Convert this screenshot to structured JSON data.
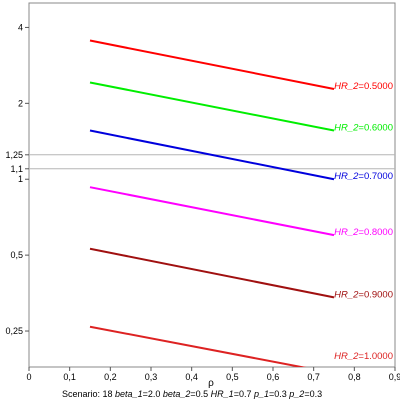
{
  "chart_data": {
    "type": "line",
    "xlabel": "ρ",
    "xlim": [
      0,
      0.9
    ],
    "ylim": [
      0.18,
      5.0
    ],
    "yscale": "log",
    "x_ticks": [
      {
        "v": 0,
        "label": "0"
      },
      {
        "v": 0.1,
        "label": "0,1"
      },
      {
        "v": 0.2,
        "label": "0,2"
      },
      {
        "v": 0.3,
        "label": "0,3"
      },
      {
        "v": 0.4,
        "label": "0,4"
      },
      {
        "v": 0.5,
        "label": "0,5"
      },
      {
        "v": 0.6,
        "label": "0,6"
      },
      {
        "v": 0.7,
        "label": "0,7"
      },
      {
        "v": 0.8,
        "label": "0,8"
      },
      {
        "v": 0.9,
        "label": "0,9"
      }
    ],
    "y_ticks": [
      {
        "v": 4,
        "label": "4"
      },
      {
        "v": 2,
        "label": "2"
      },
      {
        "v": 1.25,
        "label": "1,25"
      },
      {
        "v": 1.1,
        "label": "1,1"
      },
      {
        "v": 1,
        "label": "1"
      },
      {
        "v": 0.5,
        "label": "0,5"
      },
      {
        "v": 0.25,
        "label": "0,25"
      }
    ],
    "reference_lines": [
      1.25,
      1.1
    ],
    "series": [
      {
        "name": "HR_2=0.5000",
        "var": "HR_2",
        "value": "0.5000",
        "color": "#ff0000",
        "x": [
          0.15,
          0.75
        ],
        "y": [
          3.55,
          2.28
        ]
      },
      {
        "name": "HR_2=0.6000",
        "var": "HR_2",
        "value": "0.6000",
        "color": "#00ee00",
        "x": [
          0.15,
          0.75
        ],
        "y": [
          2.42,
          1.56
        ]
      },
      {
        "name": "HR_2=0.7000",
        "var": "HR_2",
        "value": "0.7000",
        "color": "#0000dd",
        "x": [
          0.15,
          0.75
        ],
        "y": [
          1.56,
          1.0
        ]
      },
      {
        "name": "HR_2=0.8000",
        "var": "HR_2",
        "value": "0.8000",
        "color": "#ff00ff",
        "x": [
          0.15,
          0.75
        ],
        "y": [
          0.93,
          0.6
        ]
      },
      {
        "name": "HR_2=0.9000",
        "var": "HR_2",
        "value": "0.9000",
        "color": "#a01010",
        "x": [
          0.15,
          0.75
        ],
        "y": [
          0.53,
          0.34
        ]
      },
      {
        "name": "HR_2=1.0000",
        "var": "HR_2",
        "value": "1.0000",
        "color": "#dd2222",
        "x": [
          0.15,
          0.75
        ],
        "y": [
          0.26,
          0.17
        ]
      }
    ]
  },
  "footer": {
    "scenario": "Scenario: 18",
    "params": [
      {
        "name": "beta_1",
        "value": "2.0"
      },
      {
        "name": "beta_2",
        "value": "0.5"
      },
      {
        "name": "HR_1",
        "value": "0.7"
      },
      {
        "name": "p_1",
        "value": "0.3"
      },
      {
        "name": "p_2",
        "value": "0.3"
      }
    ]
  }
}
